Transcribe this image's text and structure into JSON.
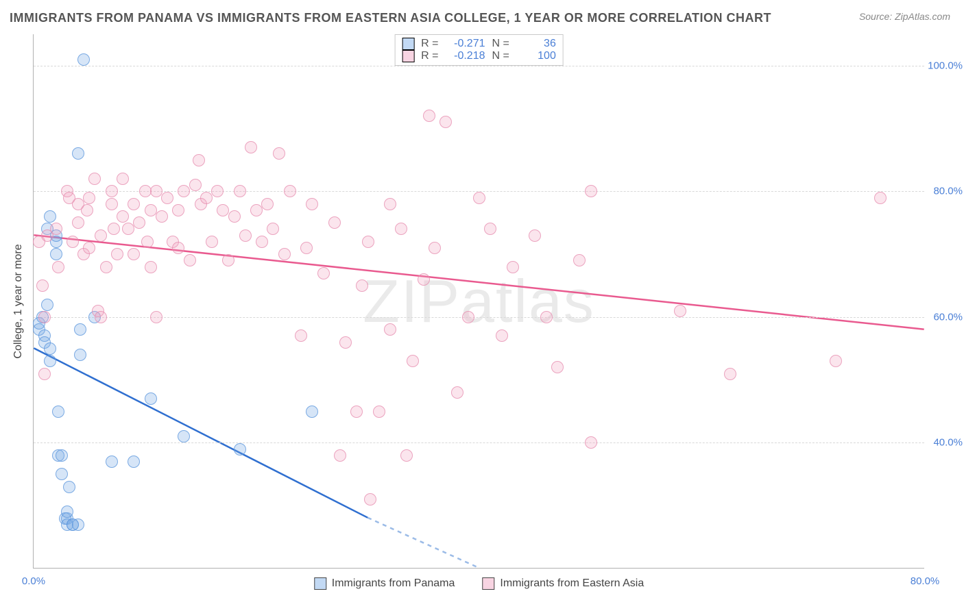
{
  "title": "IMMIGRANTS FROM PANAMA VS IMMIGRANTS FROM EASTERN ASIA COLLEGE, 1 YEAR OR MORE CORRELATION CHART",
  "source": "Source: ZipAtlas.com",
  "watermark": "ZIPatlas",
  "ylabel": "College, 1 year or more",
  "chart": {
    "type": "scatter",
    "xlim": [
      0,
      80
    ],
    "ylim": [
      20,
      105
    ],
    "x_ticks": [
      0,
      80
    ],
    "x_tick_labels": [
      "0.0%",
      "80.0%"
    ],
    "y_ticks": [
      40,
      60,
      80,
      100
    ],
    "y_tick_labels": [
      "40.0%",
      "60.0%",
      "80.0%",
      "100.0%"
    ],
    "grid_color": "#d8d8d8",
    "axis_color": "#b0b0b0",
    "background": "#ffffff",
    "tick_label_color": "#4a7fd6",
    "series": [
      {
        "name": "Immigrants from Panama",
        "color_fill": "rgba(120,170,230,0.30)",
        "color_stroke": "rgba(90,150,220,0.85)",
        "line_color": "#2f6fd0",
        "R": "-0.271",
        "N": "36",
        "trend": {
          "x1": 0,
          "y1": 55,
          "x2": 30,
          "y2": 28,
          "dash_x2": 40,
          "dash_y2": 20
        },
        "points": [
          [
            0.5,
            58
          ],
          [
            0.5,
            59
          ],
          [
            0.8,
            60
          ],
          [
            1.0,
            57
          ],
          [
            1.0,
            56
          ],
          [
            1.2,
            62
          ],
          [
            1.2,
            74
          ],
          [
            1.5,
            76
          ],
          [
            1.5,
            55
          ],
          [
            1.5,
            53
          ],
          [
            2.0,
            72
          ],
          [
            2.0,
            73
          ],
          [
            2.0,
            70
          ],
          [
            2.2,
            45
          ],
          [
            2.2,
            38
          ],
          [
            2.5,
            38
          ],
          [
            2.5,
            35
          ],
          [
            2.8,
            28
          ],
          [
            3.0,
            28
          ],
          [
            3.0,
            29
          ],
          [
            3.0,
            27
          ],
          [
            3.2,
            33
          ],
          [
            3.5,
            27
          ],
          [
            3.5,
            27
          ],
          [
            4.0,
            27
          ],
          [
            4.2,
            58
          ],
          [
            4.2,
            54
          ],
          [
            4.5,
            101
          ],
          [
            5.5,
            60
          ],
          [
            4.0,
            86
          ],
          [
            7.0,
            37
          ],
          [
            9.0,
            37
          ],
          [
            10.5,
            47
          ],
          [
            13.5,
            41
          ],
          [
            18.5,
            39
          ],
          [
            25.0,
            45
          ]
        ]
      },
      {
        "name": "Immigrants from Eastern Asia",
        "color_fill": "rgba(240,160,190,0.28)",
        "color_stroke": "rgba(230,140,175,0.80)",
        "line_color": "#e95a8f",
        "R": "-0.218",
        "N": "100",
        "trend": {
          "x1": 0,
          "y1": 73,
          "x2": 80,
          "y2": 58
        },
        "points": [
          [
            0.5,
            72
          ],
          [
            0.8,
            65
          ],
          [
            1.0,
            60
          ],
          [
            1.0,
            51
          ],
          [
            1.2,
            73
          ],
          [
            2.0,
            74
          ],
          [
            2.2,
            68
          ],
          [
            3.0,
            80
          ],
          [
            3.2,
            79
          ],
          [
            3.5,
            72
          ],
          [
            4.0,
            75
          ],
          [
            4.0,
            78
          ],
          [
            4.5,
            70
          ],
          [
            4.8,
            77
          ],
          [
            5.0,
            79
          ],
          [
            5.0,
            71
          ],
          [
            5.5,
            82
          ],
          [
            5.8,
            61
          ],
          [
            6.0,
            60
          ],
          [
            6.0,
            73
          ],
          [
            6.5,
            68
          ],
          [
            7.0,
            78
          ],
          [
            7.0,
            80
          ],
          [
            7.2,
            74
          ],
          [
            7.5,
            70
          ],
          [
            8.0,
            76
          ],
          [
            8.0,
            82
          ],
          [
            8.5,
            74
          ],
          [
            9.0,
            70
          ],
          [
            9.0,
            78
          ],
          [
            9.5,
            75
          ],
          [
            10.0,
            80
          ],
          [
            10.2,
            72
          ],
          [
            10.5,
            77
          ],
          [
            10.5,
            68
          ],
          [
            11.0,
            60
          ],
          [
            11.0,
            80
          ],
          [
            11.5,
            76
          ],
          [
            12.0,
            79
          ],
          [
            12.5,
            72
          ],
          [
            13.0,
            77
          ],
          [
            13.0,
            71
          ],
          [
            13.5,
            80
          ],
          [
            14.0,
            69
          ],
          [
            14.5,
            81
          ],
          [
            14.8,
            85
          ],
          [
            15.0,
            78
          ],
          [
            15.5,
            79
          ],
          [
            16.0,
            72
          ],
          [
            16.5,
            80
          ],
          [
            17.0,
            77
          ],
          [
            17.5,
            69
          ],
          [
            18.0,
            76
          ],
          [
            18.5,
            80
          ],
          [
            19.0,
            73
          ],
          [
            19.5,
            87
          ],
          [
            20.0,
            77
          ],
          [
            20.5,
            72
          ],
          [
            21.0,
            78
          ],
          [
            21.5,
            74
          ],
          [
            22.0,
            86
          ],
          [
            22.5,
            70
          ],
          [
            23.0,
            80
          ],
          [
            24.0,
            57
          ],
          [
            24.5,
            71
          ],
          [
            25.0,
            78
          ],
          [
            26.0,
            67
          ],
          [
            27.0,
            75
          ],
          [
            27.5,
            38
          ],
          [
            28.0,
            56
          ],
          [
            29.0,
            45
          ],
          [
            29.5,
            65
          ],
          [
            30.0,
            72
          ],
          [
            30.2,
            31
          ],
          [
            31.0,
            45
          ],
          [
            32.0,
            58
          ],
          [
            32.0,
            78
          ],
          [
            33.0,
            74
          ],
          [
            33.5,
            38
          ],
          [
            34.0,
            53
          ],
          [
            35.0,
            66
          ],
          [
            35.5,
            92
          ],
          [
            36.0,
            71
          ],
          [
            37.0,
            91
          ],
          [
            38.0,
            48
          ],
          [
            39.0,
            60
          ],
          [
            40.0,
            79
          ],
          [
            41.0,
            74
          ],
          [
            42.0,
            57
          ],
          [
            43.0,
            68
          ],
          [
            45.0,
            73
          ],
          [
            46.0,
            60
          ],
          [
            47.0,
            52
          ],
          [
            49.0,
            69
          ],
          [
            50.0,
            80
          ],
          [
            50.0,
            40
          ],
          [
            58.0,
            61
          ],
          [
            62.5,
            51
          ],
          [
            72.0,
            53
          ],
          [
            76.0,
            79
          ]
        ]
      }
    ],
    "legend_bottom": [
      {
        "swatch": "blue",
        "text": "Immigrants from Panama"
      },
      {
        "swatch": "pink",
        "text": "Immigrants from Eastern Asia"
      }
    ]
  }
}
